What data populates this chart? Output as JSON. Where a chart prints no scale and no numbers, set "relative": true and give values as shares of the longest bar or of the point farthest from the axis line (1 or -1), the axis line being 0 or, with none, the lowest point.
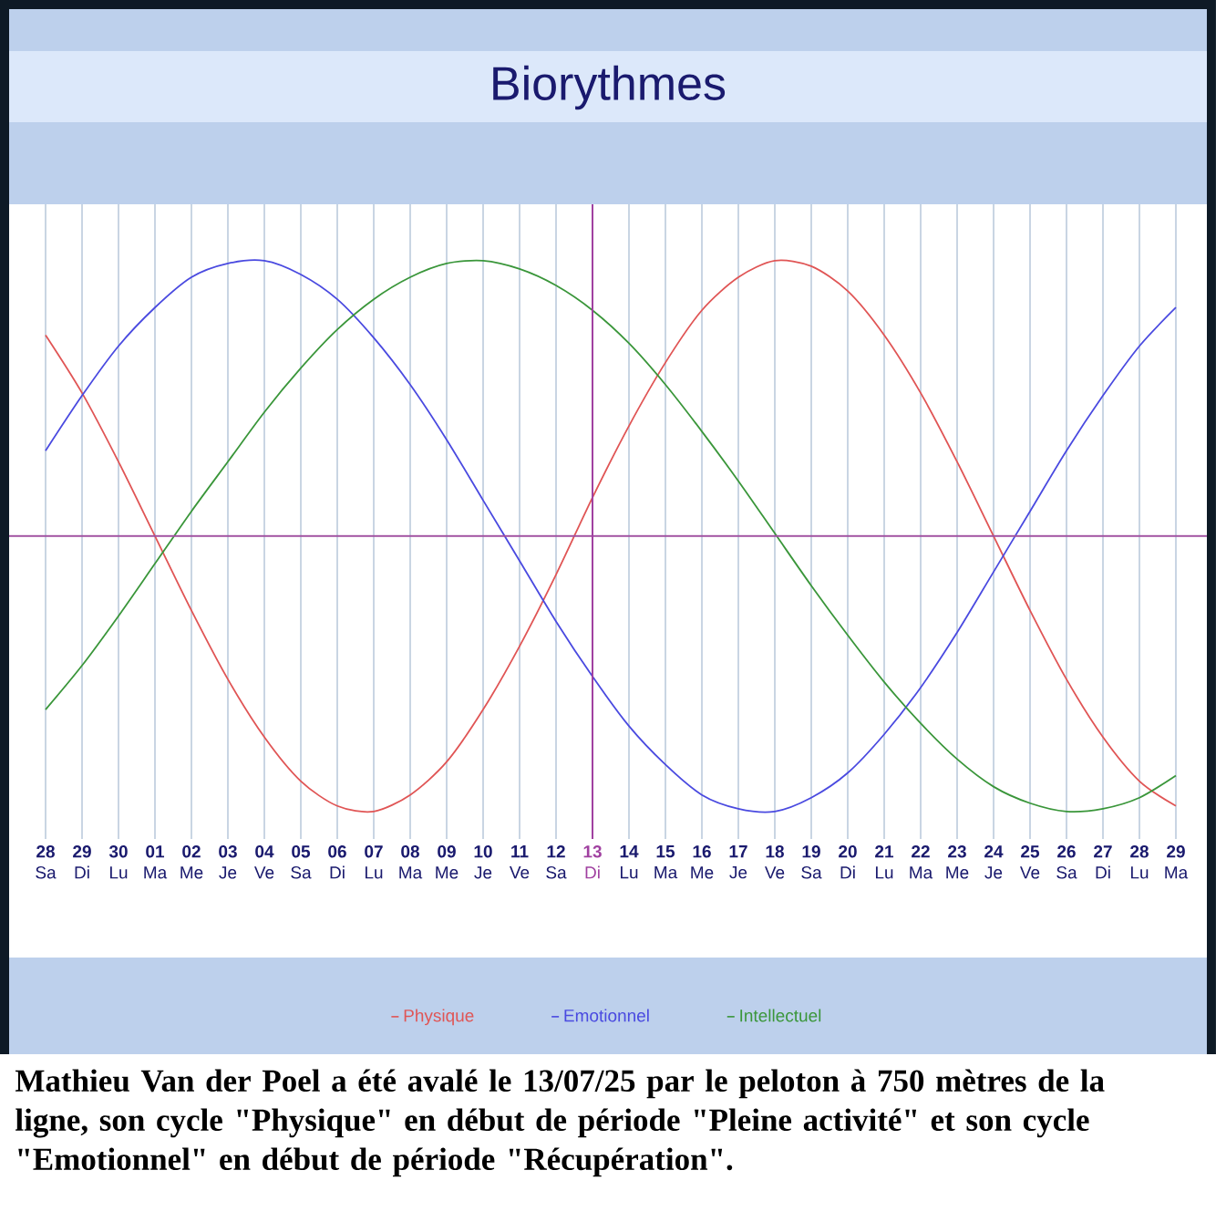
{
  "chart_data": {
    "type": "line",
    "title": "Biorythmes",
    "relative": true,
    "grid": "x",
    "legend": "bottom",
    "categories": [
      "**28** Sa",
      "**29** Di",
      "**30** Lu",
      "**01** Ma",
      "**02** Me",
      "**03** Je",
      "**04** Ve",
      "**05** Sa",
      "**06** Di",
      "**07** Lu",
      "**08** Ma",
      "**09** Me",
      "**10** Je",
      "**11** Ve",
      "**12** Sa",
      "**13** Di",
      "**14** Lu",
      "**15** Ma",
      "**16** Me",
      "**17** Je",
      "**18** Ve",
      "**19** Sa",
      "**20** Di",
      "**21** Lu",
      "**22** Ma",
      "**23** Me",
      "**24** Je",
      "**25** Ve",
      "**26** Sa",
      "**27** Di",
      "**28** Lu",
      "**29** Ma"
    ],
    "series": [
      {
        "name": "Physique",
        "color": "#e05555",
        "values": [
          0.73,
          0.52,
          0.27,
          0.0,
          -0.27,
          -0.52,
          -0.73,
          -0.89,
          -0.98,
          -1.0,
          -0.94,
          -0.82,
          -0.63,
          -0.4,
          -0.14,
          0.14,
          0.4,
          0.63,
          0.82,
          0.94,
          1.0,
          0.98,
          0.89,
          0.73,
          0.52,
          0.27,
          0.0,
          -0.27,
          -0.52,
          -0.73,
          -0.89,
          -0.98
        ]
      },
      {
        "name": "Emotionnel",
        "color": "#4a4ae0",
        "values": [
          0.31,
          0.51,
          0.69,
          0.83,
          0.94,
          0.99,
          1.0,
          0.95,
          0.86,
          0.72,
          0.55,
          0.35,
          0.13,
          -0.09,
          -0.31,
          -0.51,
          -0.69,
          -0.83,
          -0.94,
          -0.99,
          -1.0,
          -0.95,
          -0.86,
          -0.72,
          -0.55,
          -0.35,
          -0.13,
          0.09,
          0.31,
          0.51,
          0.69,
          0.83
        ]
      },
      {
        "name": "Intellectuel",
        "color": "#3a963a",
        "values": [
          -0.63,
          -0.47,
          -0.29,
          -0.1,
          0.09,
          0.27,
          0.45,
          0.61,
          0.75,
          0.86,
          0.94,
          0.99,
          1.0,
          0.97,
          0.91,
          0.82,
          0.7,
          0.55,
          0.38,
          0.2,
          0.01,
          -0.18,
          -0.36,
          -0.53,
          -0.68,
          -0.81,
          -0.91,
          -0.97,
          -1.0,
          -0.99,
          -0.95,
          -0.87
        ]
      }
    ],
    "ref_lines": [
      {
        "axis": "y",
        "value": 0,
        "color": "#a050a0"
      },
      {
        "axis": "x",
        "value": "**13** Di",
        "color": "#a040a0"
      }
    ],
    "annotations": [
      "Mathieu Van der Poel a été avalé le 13/07/25 par le peloton à 750 mètres de la ligne, son cycle \"Physique\" en début de période \"Pleine activité\" et son cycle \"Emotionnel\" en début de période \"Récupération\"."
    ]
  }
}
